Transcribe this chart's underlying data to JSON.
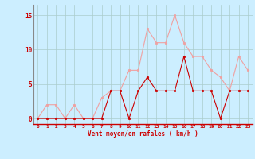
{
  "x": [
    0,
    1,
    2,
    3,
    4,
    5,
    6,
    7,
    8,
    9,
    10,
    11,
    12,
    13,
    14,
    15,
    16,
    17,
    18,
    19,
    20,
    21,
    22,
    23
  ],
  "rafales": [
    0,
    2,
    2,
    0,
    2,
    0,
    0,
    3,
    4,
    4,
    7,
    7,
    13,
    11,
    11,
    15,
    11,
    9,
    9,
    7,
    6,
    4,
    9,
    7
  ],
  "moyen": [
    0,
    0,
    0,
    0,
    0,
    0,
    0,
    0,
    4,
    4,
    0,
    4,
    6,
    4,
    4,
    4,
    9,
    4,
    4,
    4,
    0,
    4,
    4,
    4
  ],
  "color_rafales": "#f0a0a0",
  "color_moyen": "#cc0000",
  "bg_color": "#cceeff",
  "grid_color": "#aacccc",
  "xlabel": "Vent moyen/en rafales ( km/h )",
  "xlabel_color": "#cc0000",
  "tick_color": "#cc0000",
  "yticks": [
    0,
    5,
    10,
    15
  ],
  "ylim": [
    -0.8,
    16.5
  ],
  "xlim": [
    -0.5,
    23.5
  ]
}
